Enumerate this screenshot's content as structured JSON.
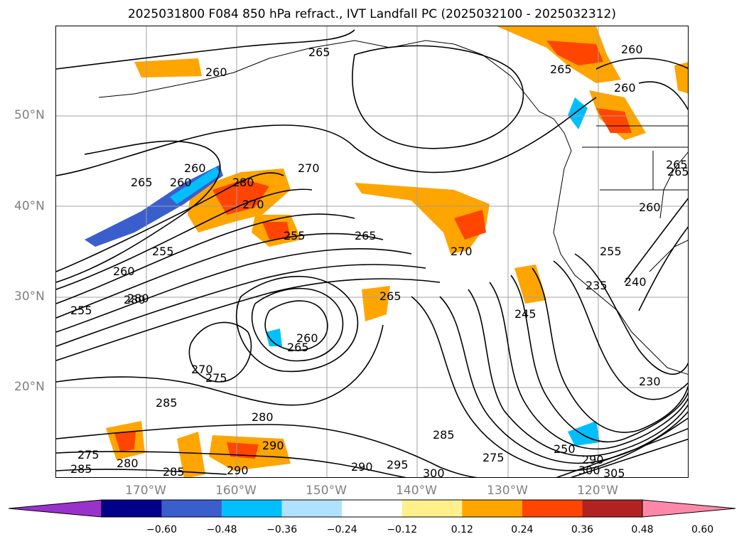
{
  "title": "2025031800 F084 850 hPa refract., IVT Landfall PC (2025032100 - 2025032312)",
  "axes": {
    "lat_labels": [
      "50°N",
      "40°N",
      "30°N",
      "20°N"
    ],
    "lon_labels": [
      "170°W",
      "160°W",
      "150°W",
      "140°W",
      "130°W",
      "120°W"
    ]
  },
  "contour_labels": [
    "265",
    "260",
    "270",
    "260",
    "260",
    "265",
    "260",
    "265",
    "280",
    "270",
    "255",
    "265",
    "270",
    "255",
    "260",
    "280",
    "255",
    "280",
    "265",
    "265",
    "260",
    "245",
    "235",
    "240",
    "255",
    "260",
    "265",
    "270",
    "275",
    "285",
    "280",
    "230",
    "290",
    "275",
    "285",
    "280",
    "285",
    "290",
    "290",
    "295",
    "300",
    "285",
    "275",
    "250",
    "290",
    "300",
    "305",
    "265",
    "260"
  ],
  "colorbar": {
    "tick_labels": [
      "−0.60",
      "−0.48",
      "−0.36",
      "−0.24",
      "−0.12",
      "0.12",
      "0.24",
      "0.36",
      "0.48",
      "0.60"
    ],
    "colors": [
      "#9932cc",
      "#00008b",
      "#3a5fcd",
      "#00bfff",
      "#b0e2ff",
      "#ffffff",
      "#fff08c",
      "#ffa500",
      "#ff4500",
      "#b22222",
      "#ff88aa"
    ]
  }
}
